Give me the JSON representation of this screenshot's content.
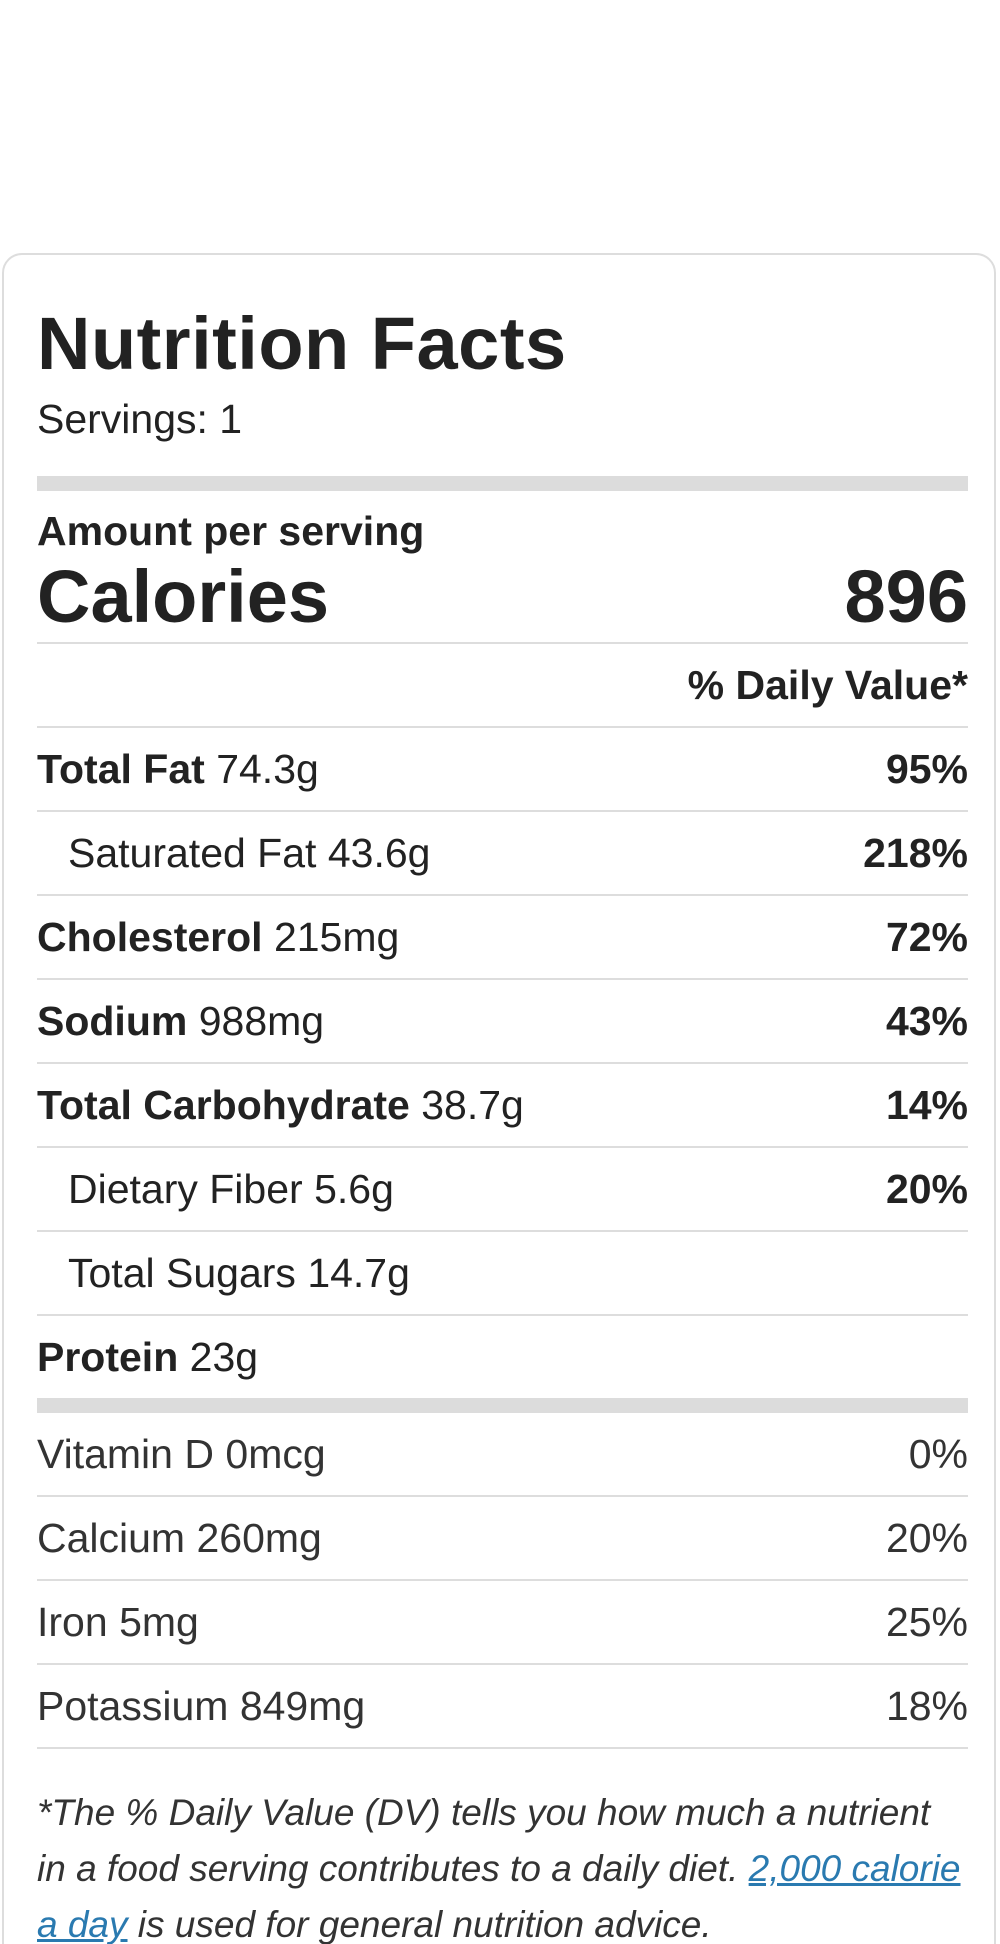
{
  "label": {
    "title": "Nutrition Facts",
    "servings": "Servings: 1",
    "amount_per_serving": "Amount per serving",
    "calories_label": "Calories",
    "calories_value": "896",
    "daily_value_header": "% Daily Value*"
  },
  "nutrients": [
    {
      "name": "Total Fat",
      "amount": "74.3g",
      "pct": "95%"
    },
    {
      "name": "Saturated Fat",
      "amount": "43.6g",
      "pct": "218%"
    },
    {
      "name": "Cholesterol",
      "amount": "215mg",
      "pct": "72%"
    },
    {
      "name": "Sodium",
      "amount": "988mg",
      "pct": "43%"
    },
    {
      "name": "Total Carbohydrate",
      "amount": "38.7g",
      "pct": "14%"
    },
    {
      "name": "Dietary Fiber",
      "amount": "5.6g",
      "pct": "20%"
    },
    {
      "name": "Total Sugars",
      "amount": "14.7g",
      "pct": ""
    },
    {
      "name": "Protein",
      "amount": "23g",
      "pct": ""
    }
  ],
  "vitamins": [
    {
      "name": "Vitamin D",
      "amount": "0mcg",
      "pct": "0%"
    },
    {
      "name": "Calcium",
      "amount": "260mg",
      "pct": "20%"
    },
    {
      "name": "Iron",
      "amount": "5mg",
      "pct": "25%"
    },
    {
      "name": "Potassium",
      "amount": "849mg",
      "pct": "18%"
    }
  ],
  "footnote": {
    "text_before": "*The % Daily Value (DV) tells you how much a nutrient in a food serving contributes to a daily diet. ",
    "link_text": "2,000 calorie a day",
    "text_after": " is used for general nutrition advice."
  },
  "colors": {
    "link": "#2a7ab0",
    "divider": "#dddddd",
    "thick_bar": "#dcdcdc"
  }
}
